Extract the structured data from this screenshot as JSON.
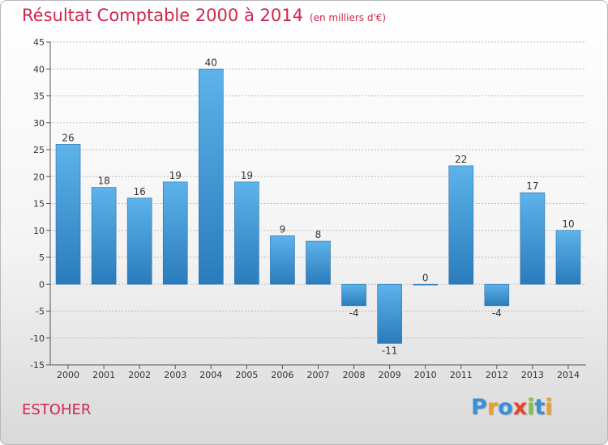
{
  "chart_data": {
    "type": "bar",
    "title": "Résultat Comptable 2000 à 2014",
    "subtitle": "(en milliers d'€)",
    "categories": [
      "2000",
      "2001",
      "2002",
      "2003",
      "2004",
      "2005",
      "2006",
      "2007",
      "2008",
      "2009",
      "2010",
      "2011",
      "2012",
      "2013",
      "2014"
    ],
    "values": [
      26,
      18,
      16,
      19,
      40,
      19,
      9,
      8,
      -4,
      -11,
      0,
      22,
      -4,
      17,
      10
    ],
    "value_labels": [
      "26",
      "18",
      "16",
      "19",
      "40",
      "19",
      "9",
      "8",
      "-4",
      "-11",
      "0",
      "22",
      "-4",
      "17",
      "10"
    ],
    "ylim": [
      -15,
      45
    ],
    "yticks": [
      -15,
      -10,
      -5,
      0,
      5,
      10,
      15,
      20,
      25,
      30,
      35,
      40,
      45
    ],
    "ytick_labels": [
      "-15",
      "-10",
      "-5",
      "0",
      "5",
      "10",
      "15",
      "20",
      "25",
      "30",
      "35",
      "40",
      "45"
    ],
    "xlabel": "",
    "ylabel": "",
    "grid": true,
    "colors": {
      "bar_light": "#5db3ea",
      "bar_dark": "#2a7bbb",
      "grid": "#bfbfbf",
      "axis": "#555555",
      "title": "#d0264f"
    }
  },
  "entity_name": "ESTOHER",
  "logo": {
    "letters": [
      "P",
      "r",
      "o",
      "x",
      "i",
      "t",
      "i"
    ],
    "colors": [
      "#3a8fd6",
      "#f0a020",
      "#3a8fd6",
      "#e8442a",
      "#7cc243",
      "#3a8fd6",
      "#f0a020"
    ]
  }
}
